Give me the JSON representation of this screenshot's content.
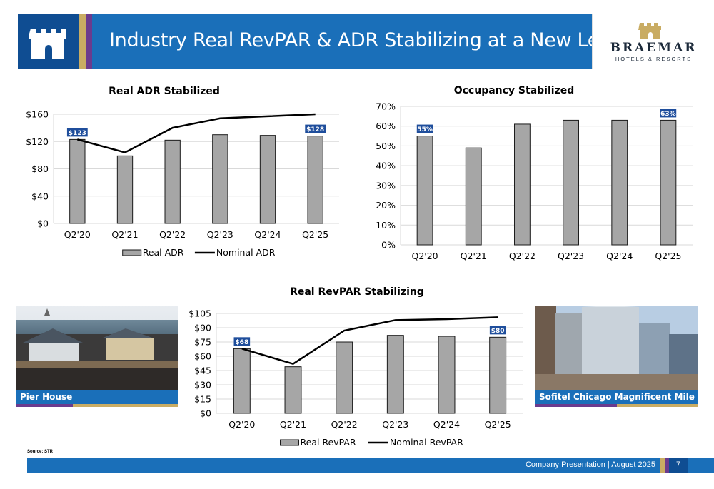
{
  "header": {
    "title": "Industry Real RevPAR & ADR Stabilizing at a New Level",
    "logo_name": "BRAEMAR",
    "logo_sub": "HOTELS & RESORTS"
  },
  "colors": {
    "brand_blue": "#1a6fb9",
    "dark_blue": "#0f4d92",
    "gold": "#c9ac63",
    "purple": "#6b3b8e",
    "bar_gray": "#a6a6a6",
    "label_blue": "#1f4e9c"
  },
  "chart_data": [
    {
      "id": "adr",
      "type": "bar",
      "title": "Real ADR Stabilized",
      "categories": [
        "Q2'20",
        "Q2'21",
        "Q2'22",
        "Q2'23",
        "Q2'24",
        "Q2'25"
      ],
      "ylim": [
        0,
        160
      ],
      "yticks": [
        0,
        40,
        80,
        120,
        160
      ],
      "ytick_labels": [
        "$0",
        "$40",
        "$80",
        "$120",
        "$160"
      ],
      "series": [
        {
          "name": "Real ADR",
          "kind": "bar",
          "values": [
            123,
            99,
            122,
            130,
            129,
            128
          ]
        },
        {
          "name": "Nominal ADR",
          "kind": "line",
          "values": [
            123,
            104,
            140,
            154,
            157,
            160
          ]
        }
      ],
      "data_labels": [
        {
          "index": 0,
          "text": "$123"
        },
        {
          "index": 5,
          "text": "$128"
        }
      ],
      "legend": "bottom"
    },
    {
      "id": "occ",
      "type": "bar",
      "title": "Occupancy Stabilized",
      "categories": [
        "Q2'20",
        "Q2'21",
        "Q2'22",
        "Q2'23",
        "Q2'24",
        "Q2'25"
      ],
      "ylim": [
        0,
        70
      ],
      "yticks": [
        0,
        10,
        20,
        30,
        40,
        50,
        60,
        70
      ],
      "ytick_labels": [
        "0%",
        "10%",
        "20%",
        "30%",
        "40%",
        "50%",
        "60%",
        "70%"
      ],
      "series": [
        {
          "kind": "bar",
          "values": [
            55,
            49,
            61,
            63,
            63,
            63
          ]
        }
      ],
      "data_labels": [
        {
          "index": 0,
          "text": "55%"
        },
        {
          "index": 5,
          "text": "63%"
        }
      ]
    },
    {
      "id": "revpar",
      "type": "bar",
      "title": "Real RevPAR Stabilizing",
      "categories": [
        "Q2'20",
        "Q2'21",
        "Q2'22",
        "Q2'23",
        "Q2'24",
        "Q2'25"
      ],
      "ylim": [
        0,
        105
      ],
      "yticks": [
        0,
        15,
        30,
        45,
        60,
        75,
        90,
        105
      ],
      "ytick_labels": [
        "$0",
        "$15",
        "$30",
        "$45",
        "$60",
        "$75",
        "$90",
        "$105"
      ],
      "series": [
        {
          "name": "Real RevPAR",
          "kind": "bar",
          "values": [
            68,
            49,
            75,
            82,
            81,
            80
          ]
        },
        {
          "name": "Nominal RevPAR",
          "kind": "line",
          "values": [
            68,
            52,
            87,
            98,
            99,
            101
          ]
        }
      ],
      "data_labels": [
        {
          "index": 0,
          "text": "$68"
        },
        {
          "index": 5,
          "text": "$80"
        }
      ],
      "legend": "bottom"
    }
  ],
  "photos": {
    "left_caption": "Pier House",
    "right_caption": "Sofitel Chicago Magnificent Mile"
  },
  "source": "Source: STR",
  "footer": {
    "text": "Company Presentation | August 2025",
    "page": "7"
  }
}
